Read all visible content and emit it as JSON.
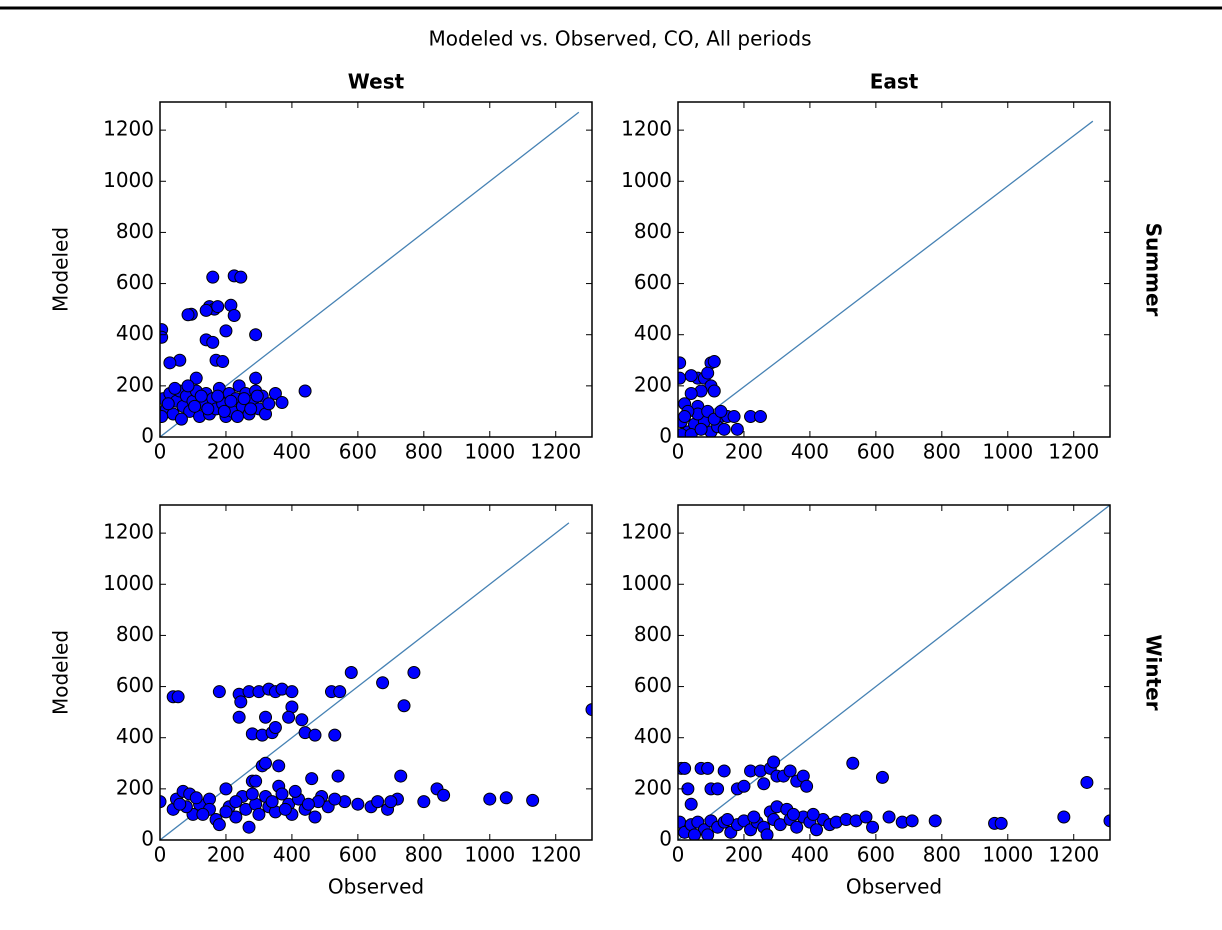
{
  "title": "Modeled vs. Observed, CO, All periods",
  "chart_data": [
    {
      "type": "scatter",
      "title": "West",
      "row_label": "Summer",
      "ylabel": "Modeled",
      "xlim": [
        0,
        1310
      ],
      "ylim": [
        0,
        1310
      ],
      "xticks": [
        0,
        200,
        400,
        600,
        800,
        1000,
        1200
      ],
      "yticks": [
        0,
        200,
        400,
        600,
        800,
        1000,
        1200
      ],
      "line": {
        "x": [
          0,
          1270
        ],
        "y": [
          0,
          1270
        ],
        "color": "#4682b4"
      },
      "points": {
        "color": "#0000ff",
        "x": [
          5,
          5,
          60,
          30,
          95,
          85,
          160,
          150,
          165,
          175,
          140,
          225,
          245,
          215,
          225,
          200,
          140,
          160,
          170,
          190,
          290,
          110,
          290,
          10,
          20,
          30,
          40,
          50,
          60,
          70,
          80,
          90,
          100,
          110,
          120,
          130,
          140,
          150,
          160,
          170,
          180,
          190,
          200,
          210,
          220,
          230,
          240,
          250,
          260,
          270,
          280,
          290,
          300,
          310,
          320,
          330,
          350,
          370,
          440,
          5,
          25,
          45,
          65,
          85,
          105,
          125,
          145,
          175,
          195,
          215,
          235,
          255,
          275,
          295
        ],
        "y": [
          420,
          390,
          300,
          290,
          480,
          478,
          625,
          510,
          500,
          510,
          495,
          630,
          625,
          515,
          475,
          415,
          380,
          370,
          300,
          295,
          400,
          230,
          230,
          150,
          110,
          170,
          90,
          140,
          180,
          120,
          160,
          100,
          140,
          180,
          80,
          130,
          170,
          90,
          150,
          110,
          190,
          130,
          80,
          170,
          100,
          150,
          200,
          120,
          170,
          90,
          140,
          180,
          110,
          160,
          90,
          130,
          170,
          135,
          180,
          80,
          130,
          190,
          70,
          200,
          120,
          160,
          110,
          160,
          100,
          140,
          80,
          150,
          110,
          160
        ]
      }
    },
    {
      "type": "scatter",
      "title": "East",
      "xlim": [
        0,
        1310
      ],
      "ylim": [
        0,
        1310
      ],
      "xticks": [
        0,
        200,
        400,
        600,
        800,
        1000,
        1200
      ],
      "yticks": [
        0,
        200,
        400,
        600,
        800,
        1000,
        1200
      ],
      "line": {
        "x": [
          0,
          1258
        ],
        "y": [
          0,
          1235
        ],
        "color": "#4682b4"
      },
      "points": {
        "color": "#0000ff",
        "x": [
          5,
          5,
          60,
          40,
          100,
          110,
          80,
          90,
          100,
          70,
          110,
          40,
          20,
          60,
          130,
          150,
          170,
          220,
          250,
          180,
          100,
          30,
          10,
          50,
          80,
          120,
          60,
          30,
          140,
          90,
          110,
          10,
          40,
          70,
          130,
          20
        ],
        "y": [
          290,
          230,
          230,
          240,
          290,
          295,
          230,
          250,
          200,
          180,
          180,
          170,
          130,
          120,
          80,
          80,
          80,
          80,
          80,
          30,
          20,
          20,
          60,
          50,
          60,
          40,
          90,
          100,
          30,
          100,
          70,
          10,
          10,
          30,
          100,
          80
        ]
      }
    },
    {
      "type": "scatter",
      "row_label": "Winter",
      "ylabel": "Modeled",
      "xlabel": "Observed",
      "xlim": [
        0,
        1310
      ],
      "ylim": [
        0,
        1310
      ],
      "xticks": [
        0,
        200,
        400,
        600,
        800,
        1000,
        1200
      ],
      "yticks": [
        0,
        200,
        400,
        600,
        800,
        1000,
        1200
      ],
      "line": {
        "x": [
          0,
          1240
        ],
        "y": [
          0,
          1240
        ],
        "color": "#4682b4"
      },
      "points": {
        "color": "#0000ff",
        "x": [
          40,
          55,
          180,
          240,
          245,
          240,
          270,
          300,
          330,
          350,
          370,
          400,
          280,
          310,
          340,
          350,
          400,
          390,
          320,
          430,
          440,
          470,
          530,
          520,
          545,
          580,
          675,
          740,
          770,
          1310,
          310,
          320,
          360,
          280,
          290,
          360,
          460,
          540,
          730,
          840,
          860,
          800,
          1000,
          1050,
          1130,
          0,
          40,
          50,
          70,
          90,
          100,
          120,
          150,
          170,
          180,
          200,
          210,
          230,
          250,
          260,
          270,
          290,
          300,
          320,
          330,
          350,
          370,
          390,
          400,
          420,
          440,
          470,
          490,
          510,
          560,
          600,
          640,
          660,
          690,
          720,
          700,
          530,
          480,
          150,
          80,
          130,
          230,
          280,
          340,
          410,
          450,
          380,
          110,
          60,
          200
        ],
        "y": [
          560,
          560,
          580,
          570,
          540,
          480,
          580,
          580,
          590,
          580,
          590,
          580,
          415,
          410,
          420,
          440,
          520,
          480,
          480,
          470,
          420,
          410,
          410,
          580,
          580,
          655,
          615,
          525,
          655,
          510,
          290,
          300,
          290,
          230,
          230,
          210,
          240,
          250,
          250,
          200,
          175,
          150,
          160,
          165,
          155,
          150,
          120,
          160,
          190,
          180,
          100,
          140,
          160,
          80,
          60,
          200,
          130,
          90,
          170,
          120,
          50,
          140,
          100,
          170,
          130,
          110,
          180,
          140,
          100,
          160,
          120,
          90,
          170,
          130,
          150,
          140,
          130,
          150,
          120,
          160,
          150,
          160,
          150,
          120,
          130,
          100,
          150,
          180,
          150,
          190,
          140,
          120,
          165,
          140,
          110
        ]
      }
    },
    {
      "type": "scatter",
      "xlabel": "Observed",
      "xlim": [
        0,
        1310
      ],
      "ylim": [
        0,
        1310
      ],
      "xticks": [
        0,
        200,
        400,
        600,
        800,
        1000,
        1200
      ],
      "yticks": [
        0,
        200,
        400,
        600,
        800,
        1000,
        1200
      ],
      "line": {
        "x": [
          0,
          1310
        ],
        "y": [
          0,
          1310
        ],
        "color": "#4682b4"
      },
      "points": {
        "color": "#0000ff",
        "x": [
          10,
          20,
          30,
          40,
          70,
          90,
          100,
          120,
          140,
          180,
          200,
          220,
          250,
          280,
          290,
          300,
          320,
          340,
          360,
          380,
          390,
          260,
          530,
          620,
          1240,
          5,
          20,
          40,
          60,
          80,
          100,
          120,
          140,
          160,
          180,
          200,
          220,
          240,
          260,
          280,
          290,
          300,
          310,
          330,
          340,
          360,
          380,
          400,
          420,
          440,
          460,
          480,
          510,
          540,
          570,
          590,
          640,
          680,
          710,
          780,
          960,
          980,
          1170,
          1310,
          50,
          90,
          150,
          230,
          270,
          350,
          410
        ],
        "y": [
          280,
          280,
          200,
          140,
          280,
          280,
          200,
          200,
          270,
          200,
          210,
          270,
          270,
          280,
          305,
          250,
          250,
          270,
          230,
          250,
          210,
          220,
          300,
          245,
          225,
          70,
          30,
          60,
          70,
          40,
          75,
          50,
          70,
          30,
          60,
          75,
          40,
          70,
          50,
          110,
          80,
          130,
          60,
          120,
          80,
          50,
          90,
          70,
          40,
          80,
          60,
          70,
          80,
          75,
          90,
          50,
          90,
          70,
          75,
          75,
          65,
          65,
          90,
          75,
          20,
          20,
          80,
          90,
          20,
          100,
          100
        ]
      }
    }
  ]
}
